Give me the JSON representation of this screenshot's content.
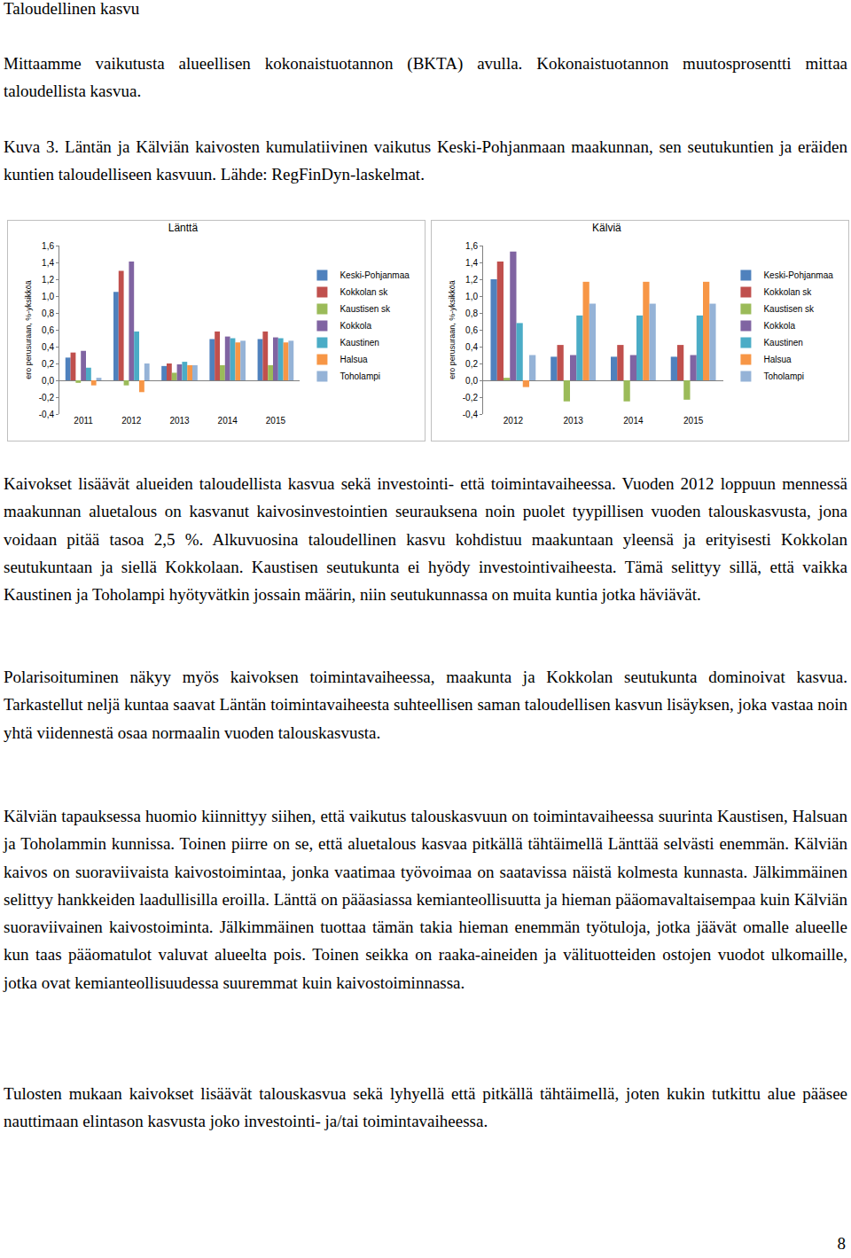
{
  "heading": "Taloudellinen kasvu",
  "intro": "Mittaamme vaikutusta alueellisen kokonaistuotannon (BKTA) avulla. Kokonaistuotannon muutosprosentti mittaa taloudellista kasvua.",
  "caption": "Kuva 3. Läntän ja Kälviän kaivosten kumulatiivinen vaikutus Keski-Pohjanmaan maakunnan, sen seutukuntien ja eräiden kuntien taloudelliseen kasvuun. Lähde: RegFinDyn-laskelmat.",
  "chart_data": [
    {
      "type": "bar",
      "title": "Länttä",
      "y_label": "ero perusuraan, %-yksikköä",
      "categories": [
        "2011",
        "2012",
        "2013",
        "2014",
        "2015"
      ],
      "series": [
        {
          "name": "Keski-Pohjanmaa",
          "color": "#4F81BD",
          "values": [
            0.27,
            1.05,
            0.17,
            0.49,
            0.49
          ]
        },
        {
          "name": "Kokkolan sk",
          "color": "#C0504D",
          "values": [
            0.33,
            1.3,
            0.2,
            0.58,
            0.58
          ]
        },
        {
          "name": "Kaustisen sk",
          "color": "#9BBB59",
          "values": [
            -0.03,
            -0.06,
            0.09,
            0.18,
            0.18
          ]
        },
        {
          "name": "Kokkola",
          "color": "#8064A2",
          "values": [
            0.35,
            1.41,
            0.19,
            0.52,
            0.51
          ]
        },
        {
          "name": "Kaustinen",
          "color": "#4BACC6",
          "values": [
            0.15,
            0.58,
            0.22,
            0.5,
            0.5
          ]
        },
        {
          "name": "Halsua",
          "color": "#F79646",
          "values": [
            -0.06,
            -0.14,
            0.18,
            0.45,
            0.45
          ]
        },
        {
          "name": "Toholampi",
          "color": "#95B3D7",
          "values": [
            0.03,
            0.2,
            0.18,
            0.47,
            0.47
          ]
        }
      ],
      "ylim": [
        -0.4,
        1.6
      ],
      "yticks": [
        {
          "value": -0.4,
          "label": "-0,4"
        },
        {
          "value": -0.2,
          "label": "-0,2"
        },
        {
          "value": 0,
          "label": "0,0"
        },
        {
          "value": 0.2,
          "label": "0,2"
        },
        {
          "value": 0.4,
          "label": "0,4"
        },
        {
          "value": 0.6,
          "label": "0,6"
        },
        {
          "value": 0.8,
          "label": "0,8"
        },
        {
          "value": 1.0,
          "label": "1,0"
        },
        {
          "value": 1.2,
          "label": "1,2"
        },
        {
          "value": 1.4,
          "label": "1,4"
        },
        {
          "value": 1.6,
          "label": "1,6"
        }
      ],
      "grid": false,
      "legend": "right"
    },
    {
      "type": "bar",
      "title": "Kälviä",
      "y_label": "ero perusuraan, %-yksikköä",
      "categories": [
        "2012",
        "2013",
        "2014",
        "2015"
      ],
      "series": [
        {
          "name": "Keski-Pohjanmaa",
          "color": "#4F81BD",
          "values": [
            1.2,
            0.28,
            0.28,
            0.28
          ]
        },
        {
          "name": "Kokkolan sk",
          "color": "#C0504D",
          "values": [
            1.41,
            0.42,
            0.42,
            0.42
          ]
        },
        {
          "name": "Kaustisen sk",
          "color": "#9BBB59",
          "values": [
            0.03,
            -0.25,
            -0.25,
            -0.23
          ]
        },
        {
          "name": "Kokkola",
          "color": "#8064A2",
          "values": [
            1.53,
            0.3,
            0.3,
            0.3
          ]
        },
        {
          "name": "Kaustinen",
          "color": "#4BACC6",
          "values": [
            0.68,
            0.77,
            0.77,
            0.77
          ]
        },
        {
          "name": "Halsua",
          "color": "#F79646",
          "values": [
            -0.08,
            1.17,
            1.17,
            1.17
          ]
        },
        {
          "name": "Toholampi",
          "color": "#95B3D7",
          "values": [
            0.3,
            0.91,
            0.91,
            0.91
          ]
        }
      ],
      "ylim": [
        -0.4,
        1.6
      ],
      "yticks": [
        {
          "value": -0.4,
          "label": "-0,4"
        },
        {
          "value": -0.2,
          "label": "-0,2"
        },
        {
          "value": 0,
          "label": "0,0"
        },
        {
          "value": 0.2,
          "label": "0,2"
        },
        {
          "value": 0.4,
          "label": "0,4"
        },
        {
          "value": 0.6,
          "label": "0,6"
        },
        {
          "value": 0.8,
          "label": "0,8"
        },
        {
          "value": 1.0,
          "label": "1,0"
        },
        {
          "value": 1.2,
          "label": "1,2"
        },
        {
          "value": 1.4,
          "label": "1,4"
        },
        {
          "value": 1.6,
          "label": "1,6"
        }
      ],
      "grid": false,
      "legend": "right"
    }
  ],
  "body": [
    "Kaivokset lisäävät alueiden taloudellista kasvua sekä investointi- että toimintavaiheessa. Vuoden 2012 loppuun mennessä maakunnan aluetalous on kasvanut kaivosinvestointien seurauksena noin puolet tyypillisen vuoden talouskasvusta, jona voidaan pitää tasoa 2,5 %. Alkuvuosina taloudellinen kasvu kohdistuu maakuntaan yleensä ja erityisesti Kokkolan seutukuntaan ja siellä Kokkolaan. Kaustisen seutukunta ei hyödy investointivaiheesta. Tämä selittyy sillä, että vaikka Kaustinen ja Toholampi hyötyvätkin jossain määrin, niin seutukunnassa on muita kuntia jotka häviävät.",
    "Polarisoituminen näkyy myös kaivoksen toimintavaiheessa, maakunta ja Kokkolan seutukunta dominoivat kasvua. Tarkastellut neljä kuntaa saavat Läntän toimintavaiheesta suhteellisen saman taloudellisen kasvun lisäyksen, joka vastaa noin yhtä viidennestä osaa normaalin vuoden talouskasvusta.",
    "Kälviän tapauksessa huomio kiinnittyy siihen, että vaikutus talouskasvuun on toimintavaiheessa suurinta Kaustisen, Halsuan ja Toholammin kunnissa. Toinen piirre on se, että aluetalous kasvaa pitkällä tähtäimellä Länttää selvästi enemmän. Kälviän kaivos on suoraviivaista kaivostoimintaa, jonka vaatimaa työvoimaa on saatavissa näistä kolmesta kunnasta. Jälkimmäinen selittyy hankkeiden laadullisilla eroilla. Länttä on pääasiassa kemianteollisuutta ja hieman pääomavaltaisempaa kuin Kälviän suoraviivainen kaivostoiminta. Jälkimmäinen tuottaa tämän takia hieman enemmän työtuloja, jotka jäävät omalle alueelle kun taas pääomatulot valuvat alueelta pois. Toinen seikka on raaka-aineiden ja välituotteiden ostojen vuodot ulkomaille, jotka ovat kemianteollisuudessa suuremmat kuin kaivostoiminnassa.",
    "Tulosten mukaan kaivokset lisäävät talouskasvua sekä lyhyellä että pitkällä tähtäimellä, joten kukin tutkittu alue pääsee nauttimaan elintason kasvusta joko investointi- ja/tai toimintavaiheessa."
  ],
  "page_number": "8"
}
